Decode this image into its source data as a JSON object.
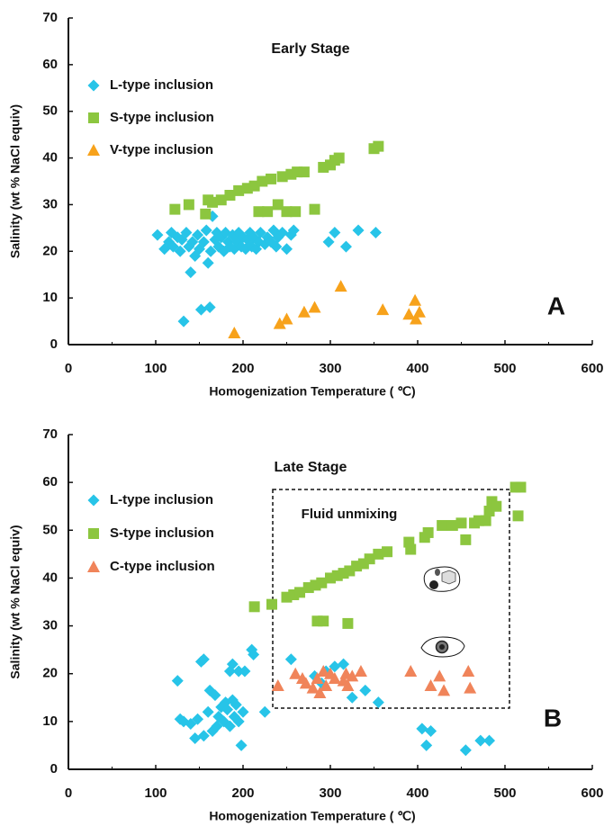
{
  "chart_data": [
    {
      "type": "scatter",
      "title": "Early Stage",
      "panel_label": "A",
      "xlabel": "Homogenization Temperature ( ℃)",
      "ylabel": "Salinity (wt % NaCl equiv)",
      "xlim": [
        0,
        600
      ],
      "xticks": [
        0,
        100,
        200,
        300,
        400,
        500,
        600
      ],
      "ylim": [
        0,
        70
      ],
      "yticks": [
        0,
        10,
        20,
        30,
        40,
        50,
        60,
        70
      ],
      "grid": false,
      "series": [
        {
          "name": "L-type inclusion",
          "color": "#27c4e8",
          "marker": "diamond",
          "x": [
            102,
            110,
            115,
            118,
            120,
            125,
            128,
            130,
            132,
            135,
            138,
            140,
            142,
            145,
            148,
            150,
            152,
            155,
            158,
            160,
            162,
            163,
            165,
            168,
            170,
            172,
            175,
            178,
            180,
            183,
            185,
            188,
            190,
            193,
            195,
            198,
            200,
            203,
            205,
            208,
            210,
            212,
            215,
            218,
            220,
            225,
            228,
            232,
            235,
            238,
            240,
            245,
            250,
            255,
            258,
            298,
            305,
            318,
            332,
            352
          ],
          "values": [
            23.5,
            20.5,
            22,
            24,
            21,
            23,
            20,
            22.5,
            5,
            24,
            21,
            15.5,
            22,
            19,
            23.5,
            20.5,
            7.5,
            22,
            24.5,
            17.5,
            8,
            20,
            27.5,
            22.5,
            24,
            21,
            23,
            20,
            24,
            22,
            21,
            23.5,
            20.5,
            22,
            24,
            21,
            23,
            20.5,
            22.5,
            24,
            21,
            23,
            20.5,
            22,
            24,
            21.5,
            23,
            22,
            24.5,
            21,
            23,
            24,
            20.5,
            23.5,
            24.5,
            22,
            24,
            21,
            24.5,
            24
          ]
        },
        {
          "name": "S-type inclusion",
          "color": "#8cc63f",
          "marker": "square",
          "x": [
            122,
            138,
            157,
            160,
            165,
            175,
            185,
            195,
            205,
            213,
            218,
            222,
            228,
            232,
            240,
            245,
            250,
            255,
            260,
            262,
            270,
            282,
            292,
            300,
            305,
            310,
            350,
            355
          ],
          "values": [
            29,
            30,
            28,
            31,
            30.5,
            31,
            32,
            33,
            33.5,
            34,
            28.5,
            35,
            28.5,
            35.5,
            30,
            36,
            28.5,
            36.5,
            28.5,
            37,
            37,
            29,
            38,
            38.5,
            39.5,
            40,
            42,
            42.5
          ]
        },
        {
          "name": "V-type inclusion",
          "color": "#f7a21b",
          "marker": "triangle",
          "x": [
            190,
            242,
            250,
            270,
            282,
            312,
            360,
            390,
            397,
            398,
            402
          ],
          "values": [
            2.5,
            4.5,
            5.5,
            7,
            8,
            12.5,
            7.5,
            6.5,
            9.5,
            5.5,
            7
          ]
        }
      ]
    },
    {
      "type": "scatter",
      "title": "Late Stage",
      "panel_label": "B",
      "annotation": "Fluid unmixing",
      "xlabel": "Homogenization Temperature ( ℃)",
      "ylabel": "Salinity (wt % NaCl equiv)",
      "xlim": [
        0,
        600
      ],
      "xticks": [
        0,
        100,
        200,
        300,
        400,
        500,
        600
      ],
      "ylim": [
        0,
        70
      ],
      "yticks": [
        0,
        10,
        20,
        30,
        40,
        50,
        60,
        70
      ],
      "grid": false,
      "series": [
        {
          "name": "L-type inclusion",
          "color": "#27c4e8",
          "marker": "diamond",
          "x": [
            125,
            128,
            132,
            140,
            145,
            148,
            152,
            155,
            155,
            160,
            162,
            165,
            168,
            170,
            172,
            175,
            178,
            180,
            182,
            185,
            185,
            188,
            188,
            190,
            192,
            195,
            195,
            198,
            200,
            202,
            210,
            212,
            225,
            255,
            282,
            290,
            295,
            305,
            315,
            325,
            340,
            355,
            405,
            410,
            415,
            455,
            472,
            482
          ],
          "values": [
            18.5,
            10.5,
            10,
            9.5,
            6.5,
            10.5,
            22.5,
            23,
            7,
            12,
            16.5,
            8,
            15.5,
            9,
            11,
            13,
            10,
            14,
            12.5,
            20.5,
            9,
            22,
            14.5,
            11,
            13.5,
            10,
            20.5,
            5,
            12,
            20.5,
            25,
            24,
            12,
            23,
            19.5,
            18,
            20.5,
            21.5,
            22,
            15,
            16.5,
            14,
            8.5,
            5,
            8,
            4,
            6,
            6
          ]
        },
        {
          "name": "S-type inclusion",
          "color": "#8cc63f",
          "marker": "square",
          "x": [
            213,
            233,
            250,
            258,
            265,
            275,
            285,
            292,
            283,
            290,
            300,
            308,
            315,
            320,
            322,
            330,
            338,
            345,
            355,
            365,
            390,
            392,
            408,
            412,
            428,
            440,
            450,
            455,
            465,
            470,
            478,
            482,
            485,
            490,
            512,
            518,
            515
          ],
          "values": [
            34,
            34.5,
            36,
            36.5,
            37,
            38,
            31,
            31,
            38.5,
            39,
            40,
            40.5,
            41,
            30.5,
            41.5,
            42.5,
            43,
            44,
            45,
            45.5,
            47.5,
            46,
            48.5,
            49.5,
            51,
            51,
            51.5,
            48,
            51.5,
            52,
            52,
            54,
            56,
            55,
            59,
            59,
            53
          ]
        },
        {
          "name": "C-type inclusion",
          "color": "#f0845a",
          "marker": "triangle",
          "x": [
            240,
            260,
            268,
            272,
            280,
            285,
            288,
            292,
            295,
            300,
            305,
            315,
            318,
            320,
            325,
            335,
            392,
            415,
            425,
            430,
            458,
            460
          ],
          "values": [
            17.5,
            20,
            19,
            18,
            17,
            19,
            16,
            20.5,
            17.5,
            20,
            19,
            18.5,
            20,
            17.5,
            19.5,
            20.5,
            20.5,
            17.5,
            19.5,
            16.5,
            20.5,
            17
          ]
        }
      ]
    }
  ]
}
